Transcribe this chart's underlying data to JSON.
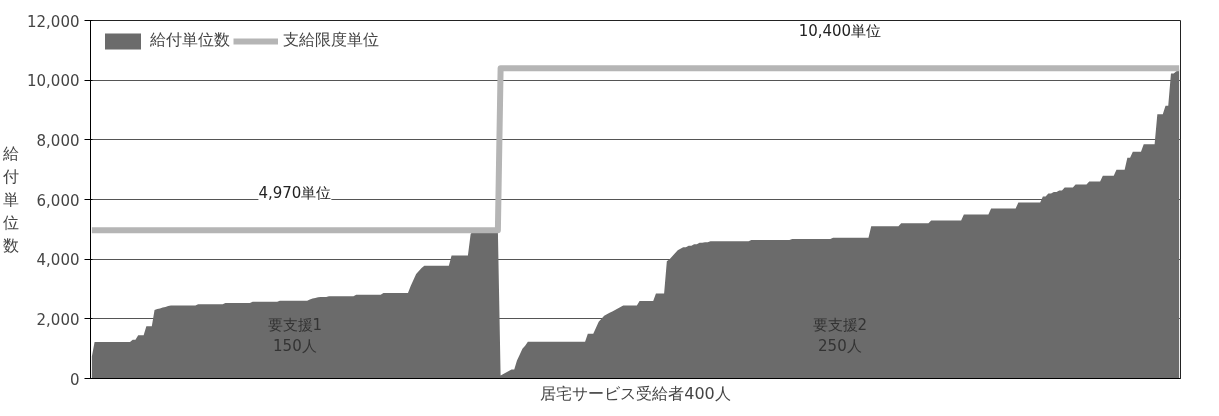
{
  "chart_data": {
    "type": "area",
    "xlabel": "居宅サービス受給者400人",
    "ylabel": "給付単位数",
    "ylim": [
      0,
      12000
    ],
    "yticks": [
      {
        "value": 0,
        "label": "0"
      },
      {
        "value": 2000,
        "label": "2,000"
      },
      {
        "value": 4000,
        "label": "4,000"
      },
      {
        "value": 6000,
        "label": "6,000"
      },
      {
        "value": 8000,
        "label": "8,000"
      },
      {
        "value": 10000,
        "label": "10,000"
      },
      {
        "value": 12000,
        "label": "12,000"
      }
    ],
    "tick_labels": "y",
    "grid": "y",
    "legend": "top left",
    "categories": [
      null,
      null,
      null,
      null,
      null,
      null,
      null,
      null,
      null,
      null,
      null,
      null,
      null,
      null,
      null,
      null,
      null,
      null,
      null,
      null,
      null,
      null,
      null,
      null,
      null,
      null,
      null,
      null,
      null,
      null,
      null,
      null,
      null,
      null,
      null,
      null,
      null,
      null,
      null,
      null,
      null,
      null,
      null,
      null,
      null,
      null,
      null,
      null,
      null,
      null,
      null,
      null,
      null,
      null,
      null,
      null,
      null,
      null,
      null,
      null,
      null,
      null,
      null,
      null,
      null,
      null,
      null,
      null,
      null,
      null,
      null,
      null,
      null,
      null,
      null,
      null,
      null,
      null,
      null,
      null,
      null,
      null,
      null,
      null,
      null,
      null,
      null,
      null,
      null,
      null,
      null,
      null,
      null,
      null,
      null,
      null,
      null,
      null,
      null,
      null,
      null,
      null,
      null,
      null,
      null,
      null,
      null,
      null,
      null,
      null,
      null,
      null,
      null,
      null,
      null,
      null,
      null,
      null,
      null,
      null,
      null,
      null,
      null,
      null,
      null,
      null,
      null,
      null,
      null,
      null,
      null,
      null,
      null,
      null,
      null,
      null,
      null,
      null,
      null,
      null,
      null,
      null,
      null,
      null,
      null,
      null,
      null,
      null,
      null,
      null,
      null,
      null,
      null,
      null,
      null,
      null,
      null,
      null,
      null,
      null,
      null,
      null,
      null,
      null,
      null,
      null,
      null,
      null,
      null,
      null,
      null,
      null,
      null,
      null,
      null,
      null,
      null,
      null,
      null,
      null,
      null,
      null,
      null,
      null,
      null,
      null,
      null,
      null,
      null,
      null,
      null,
      null,
      null,
      null,
      null,
      null,
      null,
      null,
      null,
      null,
      null,
      null,
      null,
      null,
      null,
      null,
      null,
      null,
      null,
      null,
      null,
      null,
      null,
      null,
      null,
      null,
      null,
      null,
      null,
      null,
      null,
      null,
      null,
      null,
      null,
      null,
      null,
      null,
      null,
      null,
      null,
      null,
      null,
      null,
      null,
      null,
      null,
      null,
      null,
      null,
      null,
      null,
      null,
      null,
      null,
      null,
      null,
      null,
      null,
      null,
      null,
      null,
      null,
      null,
      null,
      null,
      null,
      null,
      null,
      null,
      null,
      null,
      null,
      null,
      null,
      null,
      null,
      null,
      null,
      null,
      null,
      null,
      null,
      null,
      null,
      null,
      null,
      null,
      null,
      null,
      null,
      null,
      null,
      null,
      null,
      null,
      null,
      null,
      null,
      null,
      null,
      null,
      null,
      null,
      null,
      null,
      null,
      null,
      null,
      null,
      null,
      null,
      null,
      null,
      null,
      null,
      null,
      null,
      null,
      null,
      null,
      null,
      null,
      null,
      null,
      null,
      null,
      null,
      null,
      null,
      null,
      null,
      null,
      null,
      null,
      null,
      null,
      null,
      null,
      null,
      null,
      null,
      null,
      null,
      null,
      null,
      null,
      null,
      null,
      null,
      null,
      null,
      null,
      null,
      null,
      null,
      null,
      null,
      null,
      null,
      null,
      null,
      null,
      null,
      null,
      null,
      null,
      null,
      null,
      null,
      null,
      null,
      null,
      null,
      null,
      null,
      null,
      null,
      null,
      null,
      null,
      null,
      null,
      null,
      null,
      null,
      null,
      null,
      null,
      null,
      null,
      null,
      null,
      null,
      null,
      null,
      null,
      null,
      null,
      null,
      null,
      null,
      null,
      null,
      null,
      null,
      null,
      null,
      null,
      null
    ],
    "series": [
      {
        "name": "給付単位数",
        "color": "#6b6b6b",
        "values": [
          740,
          1220,
          1220,
          1220,
          1220,
          1220,
          1220,
          1220,
          1220,
          1220,
          1220,
          1220,
          1220,
          1220,
          1220,
          1300,
          1300,
          1450,
          1450,
          1450,
          1750,
          1750,
          1750,
          2300,
          2330,
          2350,
          2380,
          2400,
          2430,
          2450,
          2450,
          2450,
          2450,
          2450,
          2450,
          2450,
          2450,
          2450,
          2450,
          2490,
          2490,
          2490,
          2490,
          2490,
          2490,
          2490,
          2490,
          2490,
          2490,
          2530,
          2530,
          2530,
          2530,
          2530,
          2530,
          2530,
          2530,
          2530,
          2530,
          2570,
          2570,
          2570,
          2570,
          2570,
          2570,
          2570,
          2570,
          2570,
          2570,
          2610,
          2610,
          2610,
          2610,
          2610,
          2610,
          2610,
          2610,
          2610,
          2610,
          2610,
          2650,
          2680,
          2700,
          2720,
          2730,
          2730,
          2730,
          2760,
          2760,
          2760,
          2760,
          2760,
          2760,
          2760,
          2760,
          2760,
          2760,
          2810,
          2810,
          2810,
          2810,
          2810,
          2810,
          2810,
          2810,
          2810,
          2810,
          2870,
          2870,
          2870,
          2870,
          2870,
          2870,
          2870,
          2870,
          2870,
          2870,
          3100,
          3300,
          3500,
          3600,
          3700,
          3780,
          3780,
          3780,
          3780,
          3780,
          3780,
          3780,
          3780,
          3780,
          3780,
          4120,
          4120,
          4120,
          4120,
          4120,
          4120,
          4120,
          4840,
          4950,
          4950,
          4950,
          4950,
          4950,
          4950,
          4950,
          4950,
          4950,
          4950,
          100,
          150,
          200,
          250,
          300,
          300,
          600,
          800,
          1000,
          1100,
          1230,
          1230,
          1230,
          1230,
          1230,
          1230,
          1230,
          1230,
          1230,
          1230,
          1230,
          1230,
          1230,
          1230,
          1230,
          1230,
          1230,
          1230,
          1230,
          1230,
          1230,
          1230,
          1500,
          1500,
          1500,
          1700,
          1900,
          2000,
          2100,
          2150,
          2200,
          2250,
          2300,
          2350,
          2400,
          2450,
          2450,
          2450,
          2450,
          2450,
          2450,
          2600,
          2600,
          2600,
          2600,
          2600,
          2600,
          2850,
          2850,
          2850,
          2850,
          3930,
          4000,
          4100,
          4200,
          4300,
          4350,
          4400,
          4400,
          4450,
          4450,
          4500,
          4500,
          4550,
          4550,
          4570,
          4570,
          4600,
          4600,
          4600,
          4600,
          4600,
          4600,
          4600,
          4600,
          4600,
          4600,
          4600,
          4600,
          4600,
          4600,
          4600,
          4640,
          4640,
          4640,
          4640,
          4640,
          4640,
          4640,
          4640,
          4640,
          4640,
          4640,
          4640,
          4640,
          4640,
          4640,
          4680,
          4680,
          4680,
          4680,
          4680,
          4680,
          4680,
          4680,
          4680,
          4680,
          4680,
          4680,
          4680,
          4680,
          4680,
          4720,
          4720,
          4720,
          4720,
          4720,
          4720,
          4720,
          4720,
          4720,
          4720,
          4720,
          4720,
          4720,
          4720,
          5100,
          5100,
          5100,
          5100,
          5100,
          5100,
          5100,
          5100,
          5100,
          5100,
          5100,
          5200,
          5200,
          5200,
          5200,
          5200,
          5200,
          5200,
          5200,
          5200,
          5200,
          5200,
          5300,
          5300,
          5300,
          5300,
          5300,
          5300,
          5300,
          5300,
          5300,
          5300,
          5300,
          5300,
          5500,
          5500,
          5500,
          5500,
          5500,
          5500,
          5500,
          5500,
          5500,
          5500,
          5700,
          5700,
          5700,
          5700,
          5700,
          5700,
          5700,
          5700,
          5700,
          5700,
          5900,
          5900,
          5900,
          5900,
          5900,
          5900,
          5900,
          5900,
          5900,
          6100,
          6100,
          6200,
          6200,
          6250,
          6250,
          6300,
          6300,
          6400,
          6400,
          6400,
          6400,
          6500,
          6500,
          6500,
          6500,
          6500,
          6600,
          6600,
          6600,
          6600,
          6600,
          6800,
          6800,
          6800,
          6800,
          6800,
          7000,
          7000,
          7000,
          7000,
          7400,
          7400,
          7600,
          7600,
          7600,
          7600,
          7850,
          7850,
          7850,
          7850,
          7850,
          8860,
          8860,
          8860,
          9140,
          9140,
          10220,
          10220,
          10300,
          10350
        ]
      },
      {
        "name": "支給限度単位",
        "type": "line",
        "color": "#b5b5b5",
        "values": [
          4970,
          4970,
          4970,
          4970,
          4970,
          4970,
          4970,
          4970,
          4970,
          4970,
          4970,
          4970,
          4970,
          4970,
          4970,
          4970,
          4970,
          4970,
          4970,
          4970,
          4970,
          4970,
          4970,
          4970,
          4970,
          4970,
          4970,
          4970,
          4970,
          4970,
          4970,
          4970,
          4970,
          4970,
          4970,
          4970,
          4970,
          4970,
          4970,
          4970,
          4970,
          4970,
          4970,
          4970,
          4970,
          4970,
          4970,
          4970,
          4970,
          4970,
          4970,
          4970,
          4970,
          4970,
          4970,
          4970,
          4970,
          4970,
          4970,
          4970,
          4970,
          4970,
          4970,
          4970,
          4970,
          4970,
          4970,
          4970,
          4970,
          4970,
          4970,
          4970,
          4970,
          4970,
          4970,
          4970,
          4970,
          4970,
          4970,
          4970,
          4970,
          4970,
          4970,
          4970,
          4970,
          4970,
          4970,
          4970,
          4970,
          4970,
          4970,
          4970,
          4970,
          4970,
          4970,
          4970,
          4970,
          4970,
          4970,
          4970,
          4970,
          4970,
          4970,
          4970,
          4970,
          4970,
          4970,
          4970,
          4970,
          4970,
          4970,
          4970,
          4970,
          4970,
          4970,
          4970,
          4970,
          4970,
          4970,
          4970,
          4970,
          4970,
          4970,
          4970,
          4970,
          4970,
          4970,
          4970,
          4970,
          4970,
          4970,
          4970,
          4970,
          4970,
          4970,
          4970,
          4970,
          4970,
          4970,
          4970,
          4970,
          4970,
          4970,
          4970,
          4970,
          4970,
          4970,
          4970,
          4970,
          4970,
          10400,
          10400,
          10400,
          10400,
          10400,
          10400,
          10400,
          10400,
          10400,
          10400,
          10400,
          10400,
          10400,
          10400,
          10400,
          10400,
          10400,
          10400,
          10400,
          10400,
          10400,
          10400,
          10400,
          10400,
          10400,
          10400,
          10400,
          10400,
          10400,
          10400,
          10400,
          10400,
          10400,
          10400,
          10400,
          10400,
          10400,
          10400,
          10400,
          10400,
          10400,
          10400,
          10400,
          10400,
          10400,
          10400,
          10400,
          10400,
          10400,
          10400,
          10400,
          10400,
          10400,
          10400,
          10400,
          10400,
          10400,
          10400,
          10400,
          10400,
          10400,
          10400,
          10400,
          10400,
          10400,
          10400,
          10400,
          10400,
          10400,
          10400,
          10400,
          10400,
          10400,
          10400,
          10400,
          10400,
          10400,
          10400,
          10400,
          10400,
          10400,
          10400,
          10400,
          10400,
          10400,
          10400,
          10400,
          10400,
          10400,
          10400,
          10400,
          10400,
          10400,
          10400,
          10400,
          10400,
          10400,
          10400,
          10400,
          10400,
          10400,
          10400,
          10400,
          10400,
          10400,
          10400,
          10400,
          10400,
          10400,
          10400,
          10400,
          10400,
          10400,
          10400,
          10400,
          10400,
          10400,
          10400,
          10400,
          10400,
          10400,
          10400,
          10400,
          10400,
          10400,
          10400,
          10400,
          10400,
          10400,
          10400,
          10400,
          10400,
          10400,
          10400,
          10400,
          10400,
          10400,
          10400,
          10400,
          10400,
          10400,
          10400,
          10400,
          10400,
          10400,
          10400,
          10400,
          10400,
          10400,
          10400,
          10400,
          10400,
          10400,
          10400,
          10400,
          10400,
          10400,
          10400,
          10400,
          10400,
          10400,
          10400,
          10400,
          10400,
          10400,
          10400,
          10400,
          10400,
          10400,
          10400,
          10400,
          10400,
          10400,
          10400,
          10400,
          10400,
          10400,
          10400,
          10400,
          10400,
          10400,
          10400,
          10400,
          10400,
          10400,
          10400,
          10400,
          10400,
          10400,
          10400,
          10400,
          10400,
          10400,
          10400,
          10400,
          10400,
          10400,
          10400,
          10400,
          10400,
          10400,
          10400,
          10400,
          10400,
          10400,
          10400,
          10400,
          10400,
          10400,
          10400,
          10400,
          10400,
          10400,
          10400,
          10400,
          10400,
          10400,
          10400,
          10400,
          10400,
          10400,
          10400,
          10400,
          10400,
          10400,
          10400,
          10400,
          10400,
          10400,
          10400,
          10400,
          10400,
          10400,
          10400,
          10400,
          10400,
          10400,
          10400,
          10400,
          10400,
          10400,
          10400,
          10400,
          10400,
          10400,
          10400,
          10400,
          10400,
          10400,
          10400
        ]
      }
    ],
    "annotations": [
      {
        "text": "4,970単位",
        "y": 4970
      },
      {
        "text": "10,400単位",
        "y": 10400
      },
      "要支援1\n150人",
      "要支援2\n250人"
    ]
  }
}
